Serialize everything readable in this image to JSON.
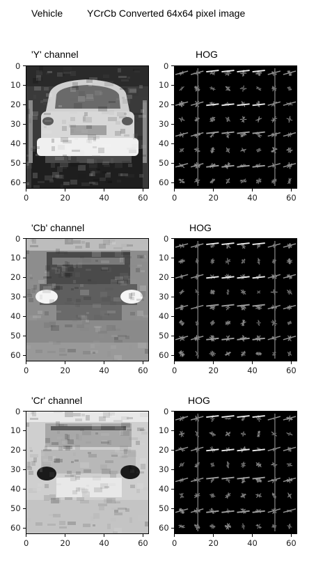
{
  "header": {
    "left": "Vehicle",
    "right": "YCrCb Converted 64x64 pixel image"
  },
  "rows": [
    {
      "channel_label": "'Y' channel",
      "hog_label": "HOG",
      "channel": "Y"
    },
    {
      "channel_label": "'Cb' channel",
      "hog_label": "HOG",
      "channel": "Cb"
    },
    {
      "channel_label": "'Cr' channel",
      "hog_label": "HOG",
      "channel": "Cr"
    }
  ],
  "axes": {
    "y_ticks": [
      "0",
      "10",
      "20",
      "30",
      "40",
      "50",
      "60"
    ],
    "x_ticks": [
      "0",
      "20",
      "40",
      "60"
    ]
  }
}
